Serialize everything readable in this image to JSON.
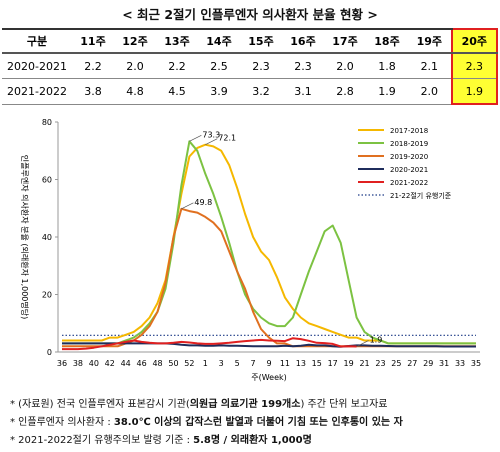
{
  "title": "< 최근 2절기 인플루엔자 의사환자 분율 현황 >",
  "table": {
    "header": [
      "구분",
      "11주",
      "12주",
      "13주",
      "14주",
      "15주",
      "16주",
      "17주",
      "18주",
      "19주",
      "20주"
    ],
    "rows": [
      [
        "2020-2021",
        "2.2",
        "2.0",
        "2.2",
        "2.5",
        "2.3",
        "2.3",
        "2.0",
        "1.8",
        "2.1",
        "2.3"
      ],
      [
        "2021-2022",
        "3.8",
        "4.8",
        "4.5",
        "3.9",
        "3.2",
        "3.1",
        "2.8",
        "1.9",
        "2.0",
        "1.9"
      ]
    ]
  },
  "chart_data": {
    "type": "line",
    "y_label": "인플루엔자 의사환자 분율 (외래환자 1,000명당)",
    "x_label": "주(Week)",
    "categories": [
      "36",
      null,
      "38",
      null,
      "40",
      null,
      "42",
      null,
      "44",
      null,
      "46",
      null,
      "48",
      null,
      "50",
      null,
      "52",
      null,
      "1",
      null,
      "3",
      null,
      "5",
      null,
      "7",
      null,
      "9",
      null,
      "11",
      null,
      "13",
      null,
      "15",
      null,
      "17",
      null,
      "19",
      null,
      "21",
      null,
      "23",
      null,
      "25",
      null,
      "27",
      null,
      "29",
      null,
      "31",
      null,
      "33",
      null,
      "35"
    ],
    "ylim": [
      0,
      80
    ],
    "yticks": [
      0,
      20,
      40,
      60,
      80
    ],
    "series": [
      {
        "name": "2017-2018",
        "color": "#f5b800",
        "values": [
          4,
          4,
          4,
          4,
          4,
          4,
          5,
          5,
          6,
          7,
          9,
          12,
          17,
          25,
          40,
          55,
          68,
          71,
          72.1,
          71.5,
          70,
          65,
          57,
          48,
          40,
          35,
          32,
          26,
          19,
          15,
          12,
          10,
          9,
          8,
          7,
          6,
          5,
          5,
          4,
          4,
          4,
          3,
          3,
          3,
          3,
          3,
          3,
          3,
          3,
          3,
          3,
          3,
          3
        ]
      },
      {
        "name": "2018-2019",
        "color": "#7cc242",
        "values": [
          3,
          3,
          3,
          3,
          3,
          3,
          3,
          3,
          4,
          5,
          7,
          10,
          14,
          22,
          38,
          58,
          73.3,
          70,
          62,
          55,
          47,
          38,
          28,
          20,
          15,
          12,
          10,
          9,
          9,
          12,
          20,
          28,
          35,
          42,
          44,
          38,
          25,
          12,
          7,
          5,
          4,
          3,
          3,
          3,
          3,
          3,
          3,
          3,
          3,
          3,
          3,
          3,
          3
        ]
      },
      {
        "name": "2019-2020",
        "color": "#e07020",
        "values": [
          2,
          2,
          2,
          2,
          2,
          2,
          2,
          2,
          3,
          4,
          6,
          9,
          14,
          24,
          40,
          49.8,
          49,
          48.5,
          47,
          45,
          42,
          35,
          28,
          22,
          14,
          8,
          5,
          3,
          3,
          2,
          2,
          2,
          2,
          2,
          2,
          2,
          2,
          2,
          2,
          2,
          2,
          2,
          2,
          2,
          2,
          2,
          2,
          2,
          2,
          2,
          2,
          2,
          2
        ]
      },
      {
        "name": "2020-2021",
        "color": "#1f2d5c",
        "values": [
          3,
          3,
          3,
          3,
          3,
          3,
          3,
          3,
          3,
          3,
          3,
          3,
          3,
          3,
          2.8,
          2.5,
          2.3,
          2.3,
          2.2,
          2.2,
          2.3,
          2.2,
          2.2,
          2.1,
          2.0,
          2.0,
          2.0,
          2.0,
          2.2,
          2.0,
          2.2,
          2.5,
          2.3,
          2.3,
          2.0,
          1.8,
          2.1,
          2.3,
          2.3,
          2.2,
          2.2,
          2.1,
          2.0,
          2.0,
          2.0,
          2.0,
          2.0,
          2.0,
          1.9,
          1.9,
          1.9,
          1.9,
          1.9
        ]
      },
      {
        "name": "2021-2022",
        "color": "#e02020",
        "values": [
          1,
          1,
          1,
          1.2,
          1.5,
          2,
          2.5,
          3,
          3.5,
          4,
          3.5,
          3.2,
          3,
          3,
          3.2,
          3.5,
          3.3,
          3,
          2.8,
          2.8,
          3,
          3.2,
          3.5,
          3.8,
          4,
          4.2,
          4,
          3.9,
          3.8,
          4.8,
          4.5,
          3.9,
          3.2,
          3.1,
          2.8,
          1.9,
          2.0,
          1.9,
          null,
          null,
          null,
          null,
          null,
          null,
          null,
          null,
          null,
          null,
          null,
          null,
          null,
          null,
          null
        ]
      }
    ],
    "threshold": {
      "name": "21-22절기 유행기준",
      "value": 5.8,
      "color": "#1f3c88"
    },
    "annotations": [
      {
        "series": 1,
        "value": 73.3
      },
      {
        "series": 0,
        "value": 72.1
      },
      {
        "series": 2,
        "value": 49.8
      },
      {
        "series": 4,
        "value": 1.9
      }
    ]
  },
  "notes": [
    [
      {
        "text": "* (자료원) 전국 인플루엔자 표본감시 기관(",
        "bold": false
      },
      {
        "text": "의원급 의료기관 199개소",
        "bold": true
      },
      {
        "text": ") 주간 단위 보고자료",
        "bold": false
      }
    ],
    [
      {
        "text": "* 인플루엔자 의사환자 : ",
        "bold": false
      },
      {
        "text": "38.0℃ 이상의 갑작스런 발열과 더불어 기침 또는 인후통이 있는 자",
        "bold": true
      }
    ],
    [
      {
        "text": "* 2021-2022절기 유행주의보 발령 기준 : ",
        "bold": false
      },
      {
        "text": "5.8명 / 외래환자 1,000명",
        "bold": true
      }
    ]
  ]
}
